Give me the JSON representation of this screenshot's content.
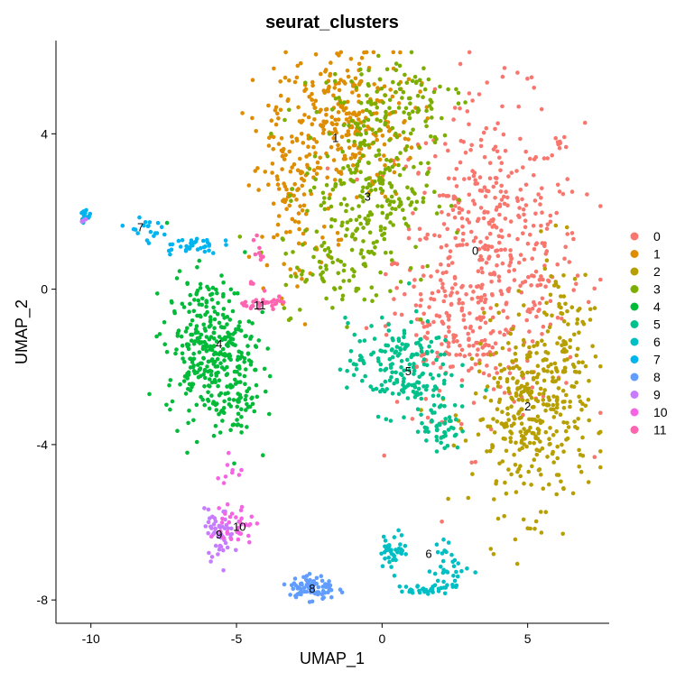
{
  "chart_data": {
    "type": "scatter",
    "title": "seurat_clusters",
    "xlabel": "UMAP_1",
    "ylabel": "UMAP_2",
    "xlim": [
      -11.2,
      7.8
    ],
    "ylim": [
      -8.6,
      6.4
    ],
    "xticks": [
      -10,
      -5,
      0,
      5
    ],
    "xtick_labels": [
      "-10",
      "-5",
      "0",
      "5"
    ],
    "yticks": [
      -8,
      -4,
      0,
      4
    ],
    "ytick_labels": [
      "-8",
      "-4",
      "0",
      "4"
    ],
    "grid": false,
    "legend_position": "right",
    "series": [
      {
        "name": "0",
        "color": "#F8766D",
        "centroid": [
          3.2,
          1.0
        ],
        "clusters": [
          {
            "cx": 3.7,
            "cy": 0.8,
            "sx": 1.6,
            "sy": 2.0,
            "n": 520
          },
          {
            "cx": 2.2,
            "cy": -1.0,
            "sx": 0.9,
            "sy": 0.6,
            "n": 60
          }
        ]
      },
      {
        "name": "1",
        "color": "#DE8C00",
        "centroid": [
          -1.6,
          3.9
        ],
        "clusters": [
          {
            "cx": -1.3,
            "cy": 4.3,
            "sx": 1.2,
            "sy": 1.0,
            "n": 280
          },
          {
            "cx": -3.0,
            "cy": 2.5,
            "sx": 0.7,
            "sy": 1.3,
            "n": 120
          }
        ]
      },
      {
        "name": "2",
        "color": "#B79F00",
        "centroid": [
          5.0,
          -3.0
        ],
        "clusters": [
          {
            "cx": 5.1,
            "cy": -3.3,
            "sx": 1.0,
            "sy": 1.2,
            "n": 330
          },
          {
            "cx": 6.2,
            "cy": -1.5,
            "sx": 0.5,
            "sy": 1.2,
            "n": 90
          }
        ]
      },
      {
        "name": "3",
        "color": "#7CAE00",
        "centroid": [
          -0.5,
          2.4
        ],
        "clusters": [
          {
            "cx": -0.5,
            "cy": 2.6,
            "sx": 1.1,
            "sy": 1.1,
            "n": 260
          },
          {
            "cx": 0.5,
            "cy": 5.0,
            "sx": 1.2,
            "sy": 0.6,
            "n": 90
          },
          {
            "cx": -1.5,
            "cy": 0.3,
            "sx": 1.0,
            "sy": 0.5,
            "n": 60
          }
        ]
      },
      {
        "name": "4",
        "color": "#00BA38",
        "centroid": [
          -5.6,
          -1.4
        ],
        "clusters": [
          {
            "cx": -5.9,
            "cy": -1.5,
            "sx": 0.75,
            "sy": 0.9,
            "n": 330
          },
          {
            "cx": -5.0,
            "cy": -3.0,
            "sx": 0.4,
            "sy": 0.5,
            "n": 50
          }
        ]
      },
      {
        "name": "5",
        "color": "#00C08B",
        "centroid": [
          0.9,
          -2.1
        ],
        "clusters": [
          {
            "cx": 0.6,
            "cy": -2.0,
            "sx": 0.9,
            "sy": 0.6,
            "n": 180
          },
          {
            "cx": 2.0,
            "cy": -3.5,
            "sx": 0.35,
            "sy": 0.35,
            "n": 50
          }
        ]
      },
      {
        "name": "6",
        "color": "#00BFC4",
        "centroid": [
          1.6,
          -6.8
        ],
        "clusters": [
          {
            "cx": 0.4,
            "cy": -6.7,
            "sx": 0.25,
            "sy": 0.22,
            "n": 40
          },
          {
            "cx": 2.3,
            "cy": -7.2,
            "sx": 0.35,
            "sy": 0.35,
            "n": 40
          },
          {
            "cx": 1.4,
            "cy": -7.75,
            "sx": 0.4,
            "sy": 0.07,
            "n": 25
          }
        ]
      },
      {
        "name": "7",
        "color": "#00B4F0",
        "centroid": [
          -8.3,
          1.6
        ],
        "clusters": [
          {
            "cx": -10.2,
            "cy": 1.95,
            "sx": 0.08,
            "sy": 0.12,
            "n": 14
          },
          {
            "cx": -8.2,
            "cy": 1.55,
            "sx": 0.3,
            "sy": 0.12,
            "n": 18
          },
          {
            "cx": -6.6,
            "cy": 1.15,
            "sx": 0.5,
            "sy": 0.12,
            "n": 35
          }
        ]
      },
      {
        "name": "8",
        "color": "#619CFF",
        "centroid": [
          -2.4,
          -7.7
        ],
        "clusters": [
          {
            "cx": -2.4,
            "cy": -7.7,
            "sx": 0.4,
            "sy": 0.18,
            "n": 80
          }
        ]
      },
      {
        "name": "9",
        "color": "#C77CFF",
        "centroid": [
          -5.6,
          -6.3
        ],
        "clusters": [
          {
            "cx": -5.6,
            "cy": -6.3,
            "sx": 0.25,
            "sy": 0.3,
            "n": 55
          },
          {
            "cx": -10.25,
            "cy": 1.75,
            "sx": 0.05,
            "sy": 0.05,
            "n": 5
          }
        ]
      },
      {
        "name": "10",
        "color": "#F564E3",
        "centroid": [
          -4.9,
          -6.1
        ],
        "clusters": [
          {
            "cx": -5.0,
            "cy": -6.1,
            "sx": 0.3,
            "sy": 0.3,
            "n": 35
          },
          {
            "cx": -5.2,
            "cy": -4.7,
            "sx": 0.3,
            "sy": 0.4,
            "n": 10
          }
        ]
      },
      {
        "name": "11",
        "color": "#FF64B0",
        "centroid": [
          -4.2,
          -0.4
        ],
        "clusters": [
          {
            "cx": -3.9,
            "cy": -0.35,
            "sx": 0.45,
            "sy": 0.06,
            "n": 28
          },
          {
            "cx": -4.2,
            "cy": 0.7,
            "sx": 0.15,
            "sy": 0.6,
            "n": 12
          }
        ]
      }
    ]
  }
}
